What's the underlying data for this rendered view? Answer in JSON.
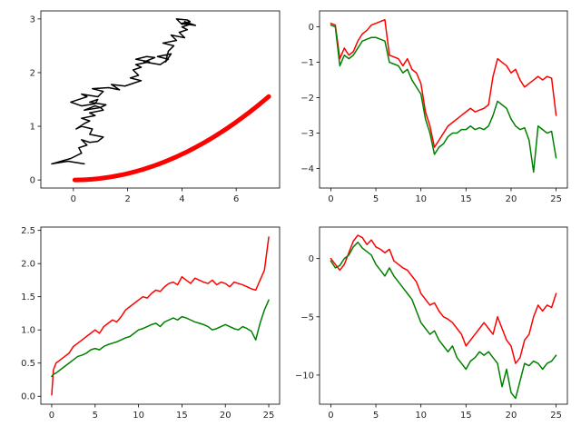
{
  "chart_data": [
    {
      "type": "line",
      "title": "",
      "xlabel": "",
      "ylabel": "",
      "xlim": [
        -1.2,
        7.6
      ],
      "ylim": [
        -0.15,
        3.15
      ],
      "xticks": [
        0,
        2,
        4,
        6
      ],
      "xtick_labels": [
        "0",
        "2",
        "4",
        "6"
      ],
      "yticks": [
        0,
        1,
        2,
        3
      ],
      "ytick_labels": [
        "0",
        "1",
        "2",
        "3"
      ],
      "series": [
        {
          "name": "black-walk",
          "color": "#000000",
          "style": "line",
          "x": [
            0.4,
            -0.2,
            -0.8,
            -0.1,
            0.3,
            0.2,
            0.5,
            0.3,
            0.6,
            0.9,
            1.1,
            0.6,
            0.7,
            0.3,
            0.1,
            0.4,
            0.6,
            0.3,
            0.8,
            0.6,
            1.1,
            1.0,
            0.4,
            0.8,
            1.0,
            1.2,
            0.6,
            0.9,
            0.8,
            0.3,
            -0.1,
            0.5,
            0.3,
            0.9,
            1.1,
            0.7,
            1.3,
            1.7,
            1.4,
            1.9,
            2.2,
            2.5,
            2.1,
            2.4,
            2.2,
            2.5,
            2.3,
            2.8,
            2.3,
            2.7,
            3.0,
            2.6,
            3.2,
            3.5,
            3.1,
            3.6,
            3.4,
            3.5,
            3.7,
            3.3,
            3.8,
            3.6,
            4.1,
            3.9,
            4.2,
            4.0,
            4.3,
            4.1,
            4.5,
            4.2,
            4.0,
            4.3,
            4.2,
            3.8,
            4.0,
            4.3,
            4.1
          ],
          "y": [
            0.3,
            0.35,
            0.3,
            0.4,
            0.5,
            0.6,
            0.65,
            0.75,
            0.7,
            0.72,
            0.8,
            0.85,
            0.95,
            1.0,
            0.95,
            1.05,
            1.1,
            1.15,
            1.2,
            1.25,
            1.3,
            1.35,
            1.3,
            1.38,
            1.35,
            1.4,
            1.45,
            1.5,
            1.42,
            1.38,
            1.45,
            1.55,
            1.6,
            1.55,
            1.65,
            1.7,
            1.72,
            1.68,
            1.78,
            1.75,
            1.8,
            1.85,
            1.9,
            1.95,
            2.05,
            2.1,
            2.15,
            2.2,
            2.25,
            2.3,
            2.28,
            2.2,
            2.15,
            2.25,
            2.3,
            2.35,
            2.2,
            2.4,
            2.5,
            2.55,
            2.6,
            2.7,
            2.65,
            2.75,
            2.8,
            2.85,
            2.9,
            2.95,
            2.88,
            2.9,
            2.92,
            2.95,
            2.98,
            3.0,
            2.9,
            2.95,
            2.9
          ]
        },
        {
          "name": "red-curve",
          "color": "#ff0000",
          "style": "thick",
          "x_range": [
            0.05,
            7.2
          ],
          "y_formula": "0.03*x^2",
          "y_end": 1.55
        }
      ]
    },
    {
      "type": "line",
      "title": "",
      "xlabel": "",
      "ylabel": "",
      "xlim": [
        -1.25,
        26.25
      ],
      "ylim": [
        -4.55,
        0.45
      ],
      "xticks": [
        0,
        5,
        10,
        15,
        20,
        25
      ],
      "xtick_labels": [
        "0",
        "5",
        "10",
        "15",
        "20",
        "25"
      ],
      "yticks": [
        0,
        -1,
        -2,
        -3,
        -4
      ],
      "ytick_labels": [
        "0",
        "−1",
        "−2",
        "−3",
        "−4"
      ],
      "series": [
        {
          "name": "red",
          "color": "#ff0000",
          "x": [
            0,
            0.5,
            1.0,
            1.5,
            2.0,
            2.5,
            3.0,
            3.5,
            4.0,
            4.5,
            5.0,
            5.5,
            6.0,
            6.5,
            7.0,
            7.5,
            8.0,
            8.5,
            9.0,
            9.5,
            10.0,
            10.5,
            11.0,
            11.5,
            12.0,
            12.5,
            13.0,
            13.5,
            14.0,
            14.5,
            15.0,
            15.5,
            16.0,
            16.5,
            17.0,
            17.5,
            18.0,
            18.5,
            19.0,
            19.5,
            20.0,
            20.5,
            21.0,
            21.5,
            22.0,
            22.5,
            23.0,
            23.5,
            24.0,
            24.5,
            25.0
          ],
          "values": [
            0.1,
            0.05,
            -0.9,
            -0.6,
            -0.8,
            -0.7,
            -0.4,
            -0.2,
            -0.1,
            0.05,
            0.1,
            0.15,
            0.2,
            -0.8,
            -0.85,
            -0.9,
            -1.1,
            -0.9,
            -1.2,
            -1.3,
            -1.6,
            -2.4,
            -2.8,
            -3.4,
            -3.2,
            -3.0,
            -2.8,
            -2.7,
            -2.6,
            -2.5,
            -2.4,
            -2.3,
            -2.4,
            -2.35,
            -2.3,
            -2.2,
            -1.4,
            -0.9,
            -1.0,
            -1.1,
            -1.3,
            -1.2,
            -1.5,
            -1.7,
            -1.6,
            -1.5,
            -1.4,
            -1.5,
            -1.4,
            -1.45,
            -2.5
          ]
        },
        {
          "name": "green",
          "color": "#008000",
          "x": [
            0,
            0.5,
            1.0,
            1.5,
            2.0,
            2.5,
            3.0,
            3.5,
            4.0,
            4.5,
            5.0,
            5.5,
            6.0,
            6.5,
            7.0,
            7.5,
            8.0,
            8.5,
            9.0,
            9.5,
            10.0,
            10.5,
            11.0,
            11.5,
            12.0,
            12.5,
            13.0,
            13.5,
            14.0,
            14.5,
            15.0,
            15.5,
            16.0,
            16.5,
            17.0,
            17.5,
            18.0,
            18.5,
            19.0,
            19.5,
            20.0,
            20.5,
            21.0,
            21.5,
            22.0,
            22.5,
            23.0,
            23.5,
            24.0,
            24.5,
            25.0
          ],
          "values": [
            0.05,
            0.0,
            -1.1,
            -0.8,
            -0.9,
            -0.8,
            -0.6,
            -0.4,
            -0.35,
            -0.3,
            -0.3,
            -0.35,
            -0.4,
            -1.0,
            -1.05,
            -1.1,
            -1.3,
            -1.2,
            -1.5,
            -1.7,
            -1.9,
            -2.6,
            -3.0,
            -3.6,
            -3.4,
            -3.3,
            -3.1,
            -3.0,
            -3.0,
            -2.9,
            -2.9,
            -2.8,
            -2.9,
            -2.85,
            -2.9,
            -2.8,
            -2.5,
            -2.1,
            -2.2,
            -2.3,
            -2.6,
            -2.8,
            -2.9,
            -2.85,
            -3.2,
            -4.1,
            -2.8,
            -2.9,
            -3.0,
            -2.95,
            -3.7
          ]
        }
      ]
    },
    {
      "type": "line",
      "title": "",
      "xlabel": "",
      "ylabel": "",
      "xlim": [
        -1.25,
        26.25
      ],
      "ylim": [
        -0.12,
        2.55
      ],
      "xticks": [
        0,
        5,
        10,
        15,
        20,
        25
      ],
      "xtick_labels": [
        "0",
        "5",
        "10",
        "15",
        "20",
        "25"
      ],
      "yticks": [
        0.0,
        0.5,
        1.0,
        1.5,
        2.0,
        2.5
      ],
      "ytick_labels": [
        "0.0",
        "0.5",
        "1.0",
        "1.5",
        "2.0",
        "2.5"
      ],
      "series": [
        {
          "name": "red",
          "color": "#ff0000",
          "x": [
            0,
            0.2,
            0.5,
            1.0,
            1.5,
            2.0,
            2.5,
            3.0,
            3.5,
            4.0,
            4.5,
            5.0,
            5.5,
            6.0,
            6.5,
            7.0,
            7.5,
            8.0,
            8.5,
            9.0,
            9.5,
            10.0,
            10.5,
            11.0,
            11.5,
            12.0,
            12.5,
            13.0,
            13.5,
            14.0,
            14.5,
            15.0,
            15.5,
            16.0,
            16.5,
            17.0,
            17.5,
            18.0,
            18.5,
            19.0,
            19.5,
            20.0,
            20.5,
            21.0,
            21.5,
            22.0,
            22.5,
            23.0,
            23.5,
            24.0,
            24.5,
            25.0
          ],
          "values": [
            0.02,
            0.4,
            0.5,
            0.55,
            0.6,
            0.65,
            0.75,
            0.8,
            0.85,
            0.9,
            0.95,
            1.0,
            0.95,
            1.05,
            1.1,
            1.15,
            1.12,
            1.2,
            1.3,
            1.35,
            1.4,
            1.45,
            1.5,
            1.48,
            1.55,
            1.6,
            1.58,
            1.65,
            1.7,
            1.72,
            1.68,
            1.8,
            1.75,
            1.7,
            1.78,
            1.75,
            1.72,
            1.7,
            1.75,
            1.68,
            1.72,
            1.7,
            1.65,
            1.72,
            1.7,
            1.68,
            1.65,
            1.62,
            1.6,
            1.75,
            1.9,
            2.4
          ]
        },
        {
          "name": "green",
          "color": "#008000",
          "x": [
            0,
            0.2,
            0.5,
            1.0,
            1.5,
            2.0,
            2.5,
            3.0,
            3.5,
            4.0,
            4.5,
            5.0,
            5.5,
            6.0,
            6.5,
            7.0,
            7.5,
            8.0,
            8.5,
            9.0,
            9.5,
            10.0,
            10.5,
            11.0,
            11.5,
            12.0,
            12.5,
            13.0,
            13.5,
            14.0,
            14.5,
            15.0,
            15.5,
            16.0,
            16.5,
            17.0,
            17.5,
            18.0,
            18.5,
            19.0,
            19.5,
            20.0,
            20.5,
            21.0,
            21.5,
            22.0,
            22.5,
            23.0,
            23.5,
            24.0,
            24.5,
            25.0
          ],
          "values": [
            0.3,
            0.33,
            0.35,
            0.4,
            0.45,
            0.5,
            0.55,
            0.6,
            0.62,
            0.65,
            0.7,
            0.72,
            0.7,
            0.75,
            0.78,
            0.8,
            0.82,
            0.85,
            0.88,
            0.9,
            0.95,
            1.0,
            1.02,
            1.05,
            1.08,
            1.1,
            1.05,
            1.12,
            1.15,
            1.18,
            1.15,
            1.2,
            1.18,
            1.15,
            1.12,
            1.1,
            1.08,
            1.05,
            1.0,
            1.02,
            1.05,
            1.08,
            1.05,
            1.02,
            1.0,
            1.05,
            1.02,
            0.98,
            0.85,
            1.1,
            1.3,
            1.45
          ]
        }
      ]
    },
    {
      "type": "line",
      "title": "",
      "xlabel": "",
      "ylabel": "",
      "xlim": [
        -1.25,
        26.25
      ],
      "ylim": [
        -12.5,
        2.7
      ],
      "xticks": [
        0,
        5,
        10,
        15,
        20,
        25
      ],
      "xtick_labels": [
        "0",
        "5",
        "10",
        "15",
        "20",
        "25"
      ],
      "yticks": [
        0,
        -5,
        -10
      ],
      "ytick_labels": [
        "0",
        "−5",
        "−10"
      ],
      "series": [
        {
          "name": "red",
          "color": "#ff0000",
          "x": [
            0,
            0.5,
            1.0,
            1.5,
            2.0,
            2.5,
            3.0,
            3.5,
            4.0,
            4.5,
            5.0,
            5.5,
            6.0,
            6.5,
            7.0,
            7.5,
            8.0,
            8.5,
            9.0,
            9.5,
            10.0,
            10.5,
            11.0,
            11.5,
            12.0,
            12.5,
            13.0,
            13.5,
            14.0,
            14.5,
            15.0,
            15.5,
            16.0,
            16.5,
            17.0,
            17.5,
            18.0,
            18.5,
            19.0,
            19.5,
            20.0,
            20.5,
            21.0,
            21.5,
            22.0,
            22.5,
            23.0,
            23.5,
            24.0,
            24.5,
            25.0
          ],
          "values": [
            0,
            -0.5,
            -1.0,
            -0.5,
            0.5,
            1.5,
            2.0,
            1.8,
            1.2,
            1.6,
            1.0,
            0.8,
            0.5,
            0.8,
            -0.2,
            -0.5,
            -0.8,
            -1.0,
            -1.5,
            -2.0,
            -3.0,
            -3.5,
            -4.0,
            -3.8,
            -4.5,
            -5.0,
            -5.2,
            -5.5,
            -6.0,
            -6.5,
            -7.5,
            -7.0,
            -6.5,
            -6.0,
            -5.5,
            -6.0,
            -6.5,
            -5.0,
            -6.0,
            -7.0,
            -7.5,
            -9.0,
            -8.5,
            -7.0,
            -6.5,
            -5.0,
            -4.0,
            -4.5,
            -4.0,
            -4.2,
            -3.0
          ]
        },
        {
          "name": "green",
          "color": "#008000",
          "x": [
            0,
            0.5,
            1.0,
            1.5,
            2.0,
            2.5,
            3.0,
            3.5,
            4.0,
            4.5,
            5.0,
            5.5,
            6.0,
            6.5,
            7.0,
            7.5,
            8.0,
            8.5,
            9.0,
            9.5,
            10.0,
            10.5,
            11.0,
            11.5,
            12.0,
            12.5,
            13.0,
            13.5,
            14.0,
            14.5,
            15.0,
            15.5,
            16.0,
            16.5,
            17.0,
            17.5,
            18.0,
            18.5,
            19.0,
            19.5,
            20.0,
            20.5,
            21.0,
            21.5,
            22.0,
            22.5,
            23.0,
            23.5,
            24.0,
            24.5,
            25.0
          ],
          "values": [
            -0.2,
            -0.8,
            -0.6,
            0,
            0.3,
            1.0,
            1.4,
            0.9,
            0.6,
            0.3,
            -0.5,
            -1.0,
            -1.5,
            -0.8,
            -1.5,
            -2.0,
            -2.5,
            -3.0,
            -3.5,
            -4.5,
            -5.5,
            -6.0,
            -6.5,
            -6.2,
            -7.0,
            -7.5,
            -8.0,
            -7.5,
            -8.5,
            -9.0,
            -9.5,
            -8.8,
            -8.5,
            -8.0,
            -8.3,
            -8.0,
            -8.5,
            -9.0,
            -11.0,
            -9.5,
            -11.5,
            -12.0,
            -10.5,
            -9.0,
            -9.2,
            -8.8,
            -9.0,
            -9.5,
            -9.0,
            -8.8,
            -8.3
          ]
        }
      ]
    }
  ]
}
